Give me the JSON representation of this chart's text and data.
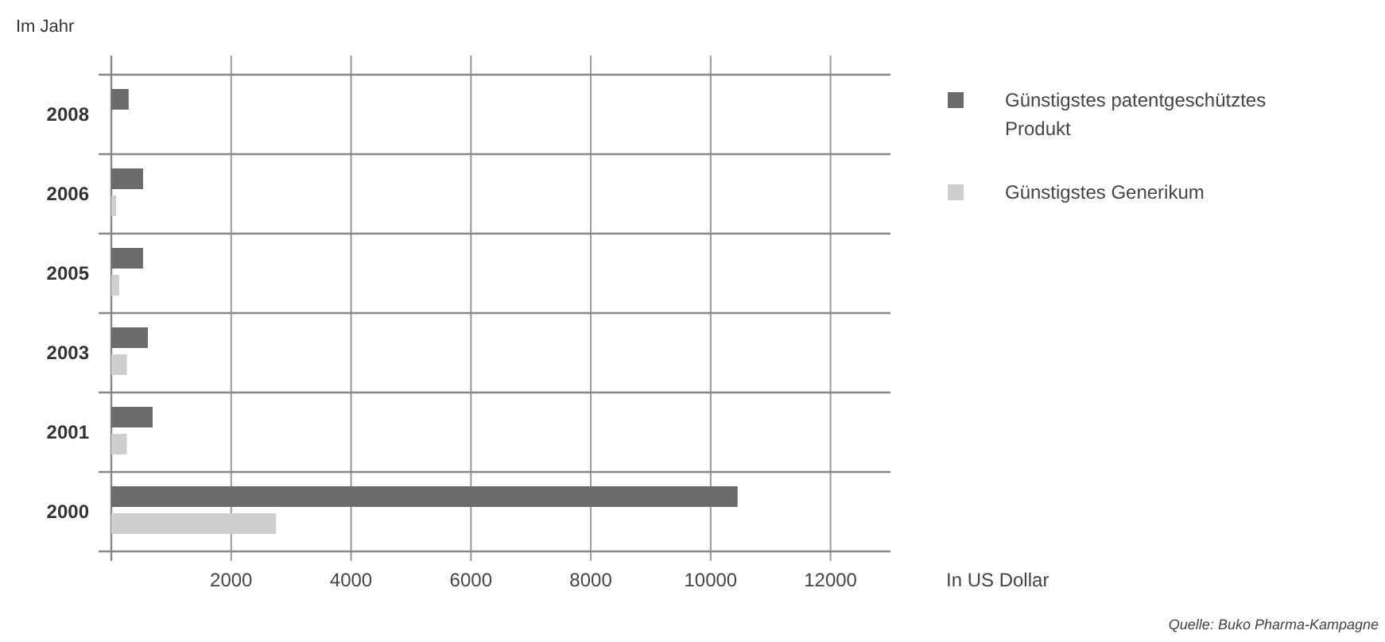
{
  "chart_data": {
    "type": "bar",
    "orientation": "horizontal",
    "ylabel": "Im Jahr",
    "xlabel": "In US Dollar",
    "categories": [
      "2008",
      "2006",
      "2005",
      "2003",
      "2001",
      "2000"
    ],
    "series": [
      {
        "name": "Günstigstes patentgeschütztes Produkt",
        "color": "#6b6b6b",
        "values": [
          290,
          530,
          530,
          610,
          690,
          10450
        ]
      },
      {
        "name": "Günstigstes Generikum",
        "color": "#cfcfcf",
        "values": [
          null,
          80,
          130,
          260,
          260,
          2750
        ]
      }
    ],
    "xlim": [
      0,
      13000
    ],
    "xticks": [
      2000,
      4000,
      6000,
      8000,
      10000,
      12000
    ],
    "grid": "x",
    "legend": "top right",
    "annotations": [
      "Quelle: Buko Pharma-Kampagne"
    ]
  }
}
